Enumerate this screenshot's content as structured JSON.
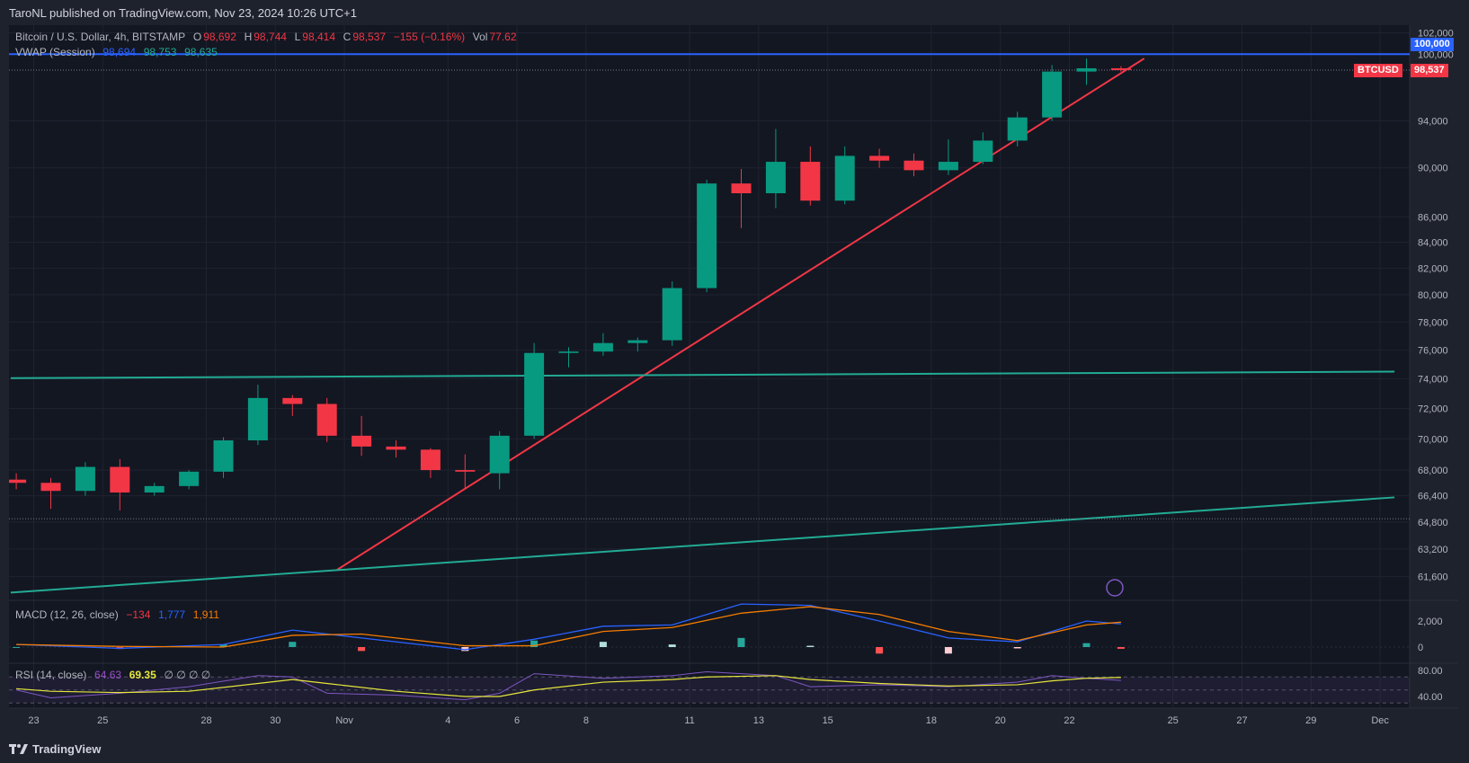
{
  "header": {
    "published": "TaroNL published on TradingView.com, Nov 23, 2024 10:26 UTC+1"
  },
  "legend": {
    "symbol": "Bitcoin / U.S. Dollar, 4h, BITSTAMP",
    "o_label": "O",
    "o": "98,692",
    "h_label": "H",
    "h": "98,744",
    "l_label": "L",
    "l": "98,414",
    "c_label": "C",
    "c": "98,537",
    "change": "−155 (−0.16%)",
    "vol_label": "Vol",
    "vol": "77.62",
    "vwap_label": "VWAP (Session)",
    "vwap1": "98,694",
    "vwap2": "98,753",
    "vwap3": "98,635",
    "macd_label": "MACD (12, 26, close)",
    "macd_hist": "−134",
    "macd": "1,777",
    "macd_signal": "1,911",
    "rsi_label": "RSI (14, close)",
    "rsi": "64.63",
    "rsi_ma": "69.35",
    "rsi_extra": "∅ ∅ ∅ ∅"
  },
  "tags": {
    "symbol": "BTCUSD",
    "last_price": "98,537",
    "level": "100,000"
  },
  "footer": {
    "brand": "TradingView",
    "logo_icon": "tradingview-logo-icon"
  },
  "colors": {
    "up": "#089981",
    "down": "#f23645",
    "trendline": "#f23645",
    "support": "#22ab94",
    "macd": "#2962ff",
    "signal": "#f57c00",
    "rsi": "#7e57c2",
    "rsi_ma": "#e6e63c",
    "level_line": "#2962ff"
  },
  "chart_data": {
    "type": "candlestick",
    "scale": "log",
    "price_ticks": [
      "102,000",
      "100,000",
      "94,000",
      "90,000",
      "86,000",
      "84,000",
      "82,000",
      "80,000",
      "78,000",
      "76,000",
      "74,000",
      "72,000",
      "70,000",
      "68,000",
      "66,400",
      "64,800",
      "63,200",
      "61,600"
    ],
    "time_ticks": [
      {
        "date": "2024-10-23",
        "label": "23"
      },
      {
        "date": "2024-10-25",
        "label": "25"
      },
      {
        "date": "2024-10-28",
        "label": "28"
      },
      {
        "date": "2024-10-30",
        "label": "30"
      },
      {
        "date": "2024-11-01",
        "label": "Nov"
      },
      {
        "date": "2024-11-04",
        "label": "4"
      },
      {
        "date": "2024-11-06",
        "label": "6"
      },
      {
        "date": "2024-11-08",
        "label": "8"
      },
      {
        "date": "2024-11-11",
        "label": "11"
      },
      {
        "date": "2024-11-13",
        "label": "13"
      },
      {
        "date": "2024-11-15",
        "label": "15"
      },
      {
        "date": "2024-11-18",
        "label": "18"
      },
      {
        "date": "2024-11-20",
        "label": "20"
      },
      {
        "date": "2024-11-22",
        "label": "22"
      },
      {
        "date": "2024-11-25",
        "label": "25"
      },
      {
        "date": "2024-11-27",
        "label": "27"
      },
      {
        "date": "2024-11-29",
        "label": "29"
      },
      {
        "date": "2024-12-01",
        "label": "Dec"
      }
    ],
    "ohlc_approx_daily": [
      [
        "2024-10-22",
        67400,
        67800,
        66800,
        67200
      ],
      [
        "2024-10-23",
        67200,
        67500,
        65600,
        66700
      ],
      [
        "2024-10-24",
        66700,
        68500,
        66400,
        68200
      ],
      [
        "2024-10-25",
        68200,
        68700,
        65500,
        66600
      ],
      [
        "2024-10-26",
        66600,
        67200,
        66400,
        67000
      ],
      [
        "2024-10-27",
        67000,
        68000,
        66800,
        67900
      ],
      [
        "2024-10-28",
        67900,
        70100,
        67500,
        69900
      ],
      [
        "2024-10-29",
        69900,
        73600,
        69600,
        72700
      ],
      [
        "2024-10-30",
        72700,
        72900,
        71500,
        72300
      ],
      [
        "2024-10-31",
        72300,
        72700,
        69800,
        70200
      ],
      [
        "2024-11-01",
        70200,
        71500,
        68900,
        69500
      ],
      [
        "2024-11-02",
        69500,
        69900,
        68800,
        69300
      ],
      [
        "2024-11-03",
        69300,
        69400,
        67500,
        68000
      ],
      [
        "2024-11-04",
        68000,
        69000,
        66800,
        67900
      ],
      [
        "2024-11-05",
        67800,
        70500,
        66800,
        70200
      ],
      [
        "2024-11-06",
        70200,
        76500,
        70000,
        75800
      ],
      [
        "2024-11-07",
        75800,
        76200,
        74800,
        75900
      ],
      [
        "2024-11-08",
        75900,
        77200,
        75600,
        76500
      ],
      [
        "2024-11-09",
        76500,
        76900,
        75900,
        76700
      ],
      [
        "2024-11-10",
        76700,
        81000,
        76300,
        80500
      ],
      [
        "2024-11-11",
        80500,
        89000,
        80200,
        88700
      ],
      [
        "2024-11-12",
        88700,
        89900,
        85100,
        87900
      ],
      [
        "2024-11-13",
        87900,
        93300,
        86700,
        90500
      ],
      [
        "2024-11-14",
        90500,
        91800,
        86900,
        87300
      ],
      [
        "2024-11-15",
        87300,
        91800,
        87000,
        91000
      ],
      [
        "2024-11-16",
        91000,
        91600,
        90000,
        90600
      ],
      [
        "2024-11-17",
        90600,
        91200,
        89300,
        89800
      ],
      [
        "2024-11-18",
        89800,
        92400,
        89400,
        90500
      ],
      [
        "2024-11-19",
        90500,
        93000,
        90300,
        92300
      ],
      [
        "2024-11-20",
        92300,
        94800,
        91800,
        94300
      ],
      [
        "2024-11-21",
        94300,
        99000,
        94000,
        98400
      ],
      [
        "2024-11-22",
        98400,
        99600,
        97200,
        98700
      ],
      [
        "2024-11-23",
        98700,
        98900,
        98400,
        98537
      ]
    ],
    "lines": [
      {
        "kind": "trendline",
        "color": "#f23645",
        "from": [
          "2024-10-31T19:00",
          62000
        ],
        "to": [
          "2024-11-24T04:00",
          99600
        ]
      },
      {
        "kind": "support",
        "color": "#22ab94",
        "from": [
          "2024-10-22T08:00",
          74050
        ],
        "to": [
          "2024-12-01T10:00",
          74500
        ]
      },
      {
        "kind": "support",
        "color": "#22ab94",
        "from": [
          "2024-10-22T08:00",
          60700
        ],
        "to": [
          "2024-12-01T10:00",
          66300
        ]
      },
      {
        "kind": "horizontal",
        "color": "#2962ff",
        "price": 100000
      },
      {
        "kind": "dotted",
        "price": 98537
      },
      {
        "kind": "dotted",
        "price": 65000
      }
    ],
    "macd": {
      "ticks": [
        "2,000",
        "0"
      ],
      "points": [
        [
          "2024-10-22",
          200,
          200
        ],
        [
          "2024-10-25",
          -100,
          50
        ],
        [
          "2024-10-28",
          200,
          0
        ],
        [
          "2024-10-30",
          1300,
          900
        ],
        [
          "2024-11-01",
          700,
          1000
        ],
        [
          "2024-11-04",
          -200,
          100
        ],
        [
          "2024-11-06",
          600,
          100
        ],
        [
          "2024-11-08",
          1600,
          1200
        ],
        [
          "2024-11-10",
          1700,
          1500
        ],
        [
          "2024-11-12",
          3300,
          2600
        ],
        [
          "2024-11-14",
          3200,
          3100
        ],
        [
          "2024-11-16",
          2000,
          2500
        ],
        [
          "2024-11-18",
          700,
          1200
        ],
        [
          "2024-11-20",
          400,
          500
        ],
        [
          "2024-11-22",
          2000,
          1700
        ],
        [
          "2024-11-23",
          1777,
          1911
        ]
      ]
    },
    "rsi": {
      "ticks": [
        "80.00",
        "40.00"
      ],
      "bands": [
        70,
        30
      ],
      "points": [
        [
          "2024-10-22",
          50,
          52
        ],
        [
          "2024-10-23",
          38,
          48
        ],
        [
          "2024-10-25",
          45,
          46
        ],
        [
          "2024-10-27",
          55,
          48
        ],
        [
          "2024-10-29",
          72,
          60
        ],
        [
          "2024-10-30",
          70,
          66
        ],
        [
          "2024-10-31",
          45,
          60
        ],
        [
          "2024-11-02",
          42,
          48
        ],
        [
          "2024-11-04",
          35,
          40
        ],
        [
          "2024-11-05",
          45,
          40
        ],
        [
          "2024-11-06",
          75,
          50
        ],
        [
          "2024-11-08",
          68,
          62
        ],
        [
          "2024-11-10",
          72,
          66
        ],
        [
          "2024-11-11",
          78,
          70
        ],
        [
          "2024-11-13",
          72,
          72
        ],
        [
          "2024-11-14",
          55,
          66
        ],
        [
          "2024-11-16",
          58,
          60
        ],
        [
          "2024-11-18",
          55,
          56
        ],
        [
          "2024-11-20",
          62,
          58
        ],
        [
          "2024-11-21",
          72,
          64
        ],
        [
          "2024-11-22",
          68,
          68
        ],
        [
          "2024-11-23",
          64.63,
          69.35
        ]
      ]
    }
  }
}
